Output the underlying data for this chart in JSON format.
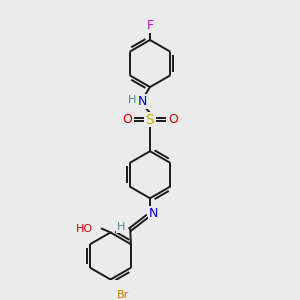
{
  "background_color": "#ebebeb",
  "bond_color": "#1a1a1a",
  "atom_colors": {
    "N": "#0000cc",
    "N_imine": "#0000cc",
    "O": "#cc0000",
    "S": "#ccaa00",
    "Br": "#cc7700",
    "F": "#cc00cc",
    "H": "#4a8a8a",
    "C": "#1a1a1a"
  },
  "font_size": 8,
  "bond_width": 1.4,
  "doffset": 0.05,
  "figsize": [
    3.0,
    3.0
  ],
  "dpi": 100
}
